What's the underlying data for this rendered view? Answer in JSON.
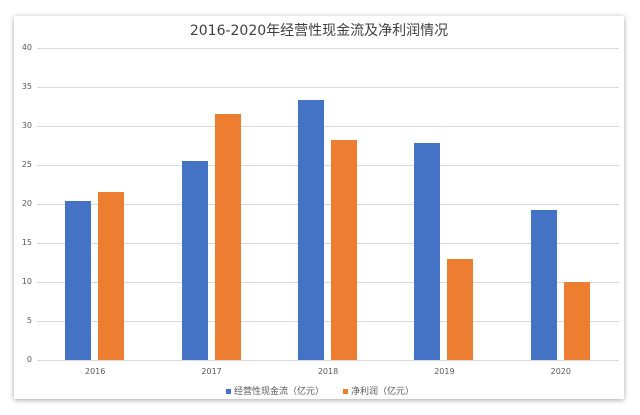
{
  "chart_data": {
    "type": "bar",
    "title": "2016-2020年经营性现金流及净利润情况",
    "categories": [
      "2016",
      "2017",
      "2018",
      "2019",
      "2020"
    ],
    "series": [
      {
        "name": "经营性现金流（亿元）",
        "color": "#4472c4",
        "values": [
          20.4,
          25.5,
          33.3,
          27.8,
          19.2
        ]
      },
      {
        "name": "净利润（亿元）",
        "color": "#ed7d31",
        "values": [
          21.6,
          31.5,
          28.2,
          12.9,
          10.0
        ]
      }
    ],
    "xlabel": "",
    "ylabel": "",
    "ylim": [
      0,
      40
    ],
    "yticks": [
      0,
      5,
      10,
      15,
      20,
      25,
      30,
      35,
      40
    ],
    "grid": true,
    "legend_position": "bottom"
  }
}
